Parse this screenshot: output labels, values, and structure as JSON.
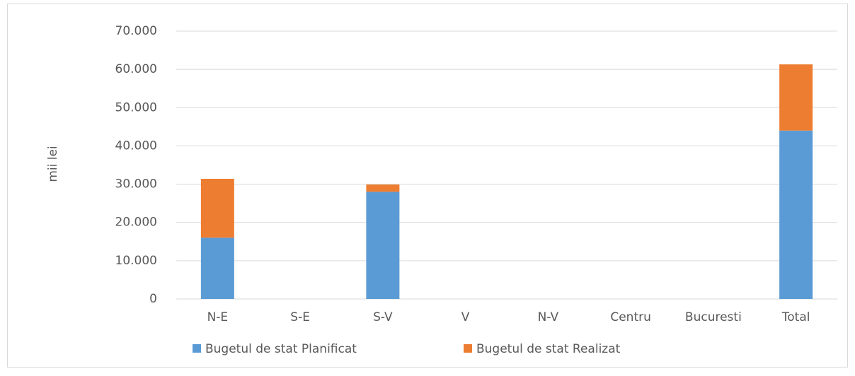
{
  "chart_data": {
    "type": "stacked_bar",
    "y_axis_label": "mii lei",
    "categories": [
      "N-E",
      "S-E",
      "S-V",
      "V",
      "N-V",
      "Centru",
      "Bucuresti",
      "Total"
    ],
    "series": [
      {
        "name": "Bugetul de stat Planificat",
        "color": "#5b9bd5",
        "values": [
          16000,
          null,
          28000,
          null,
          null,
          null,
          null,
          44000
        ]
      },
      {
        "name": "Bugetul de stat Realizat",
        "color": "#ed7d31",
        "values": [
          15400,
          null,
          1900,
          null,
          null,
          null,
          null,
          17300
        ]
      }
    ],
    "ylim": [
      0,
      70000
    ],
    "yticks": [
      0,
      {
        "value": 10000,
        "label": "10.000"
      },
      {
        "value": 20000,
        "label": "20.000"
      },
      {
        "value": 30000,
        "label": "30.000"
      },
      {
        "value": 40000,
        "label": "40.000"
      },
      {
        "value": 50000,
        "label": "50.000"
      },
      {
        "value": 60000,
        "label": "60.000"
      },
      {
        "value": 70000,
        "label": "70.000"
      }
    ],
    "grid": true,
    "legend": "bottom"
  }
}
